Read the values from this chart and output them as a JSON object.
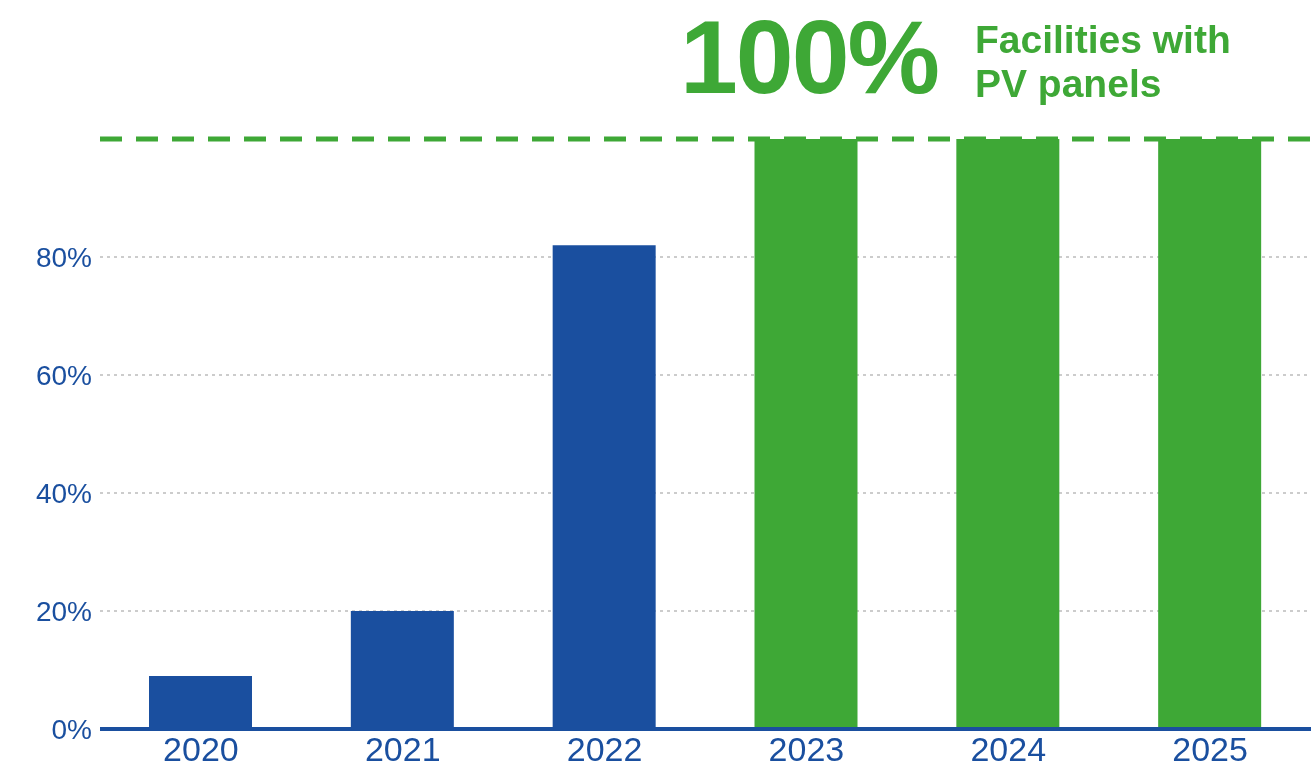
{
  "chart_data": {
    "type": "bar",
    "annotations": [
      "100%",
      "Facilities with PV panels"
    ],
    "categories": [
      "2020",
      "2021",
      "2022",
      "2023",
      "2024",
      "2025"
    ],
    "values": [
      9,
      20,
      82,
      100,
      100,
      100
    ],
    "colors": [
      "#1a4f9f",
      "#1a4f9f",
      "#1a4f9f",
      "#3ea836",
      "#3ea836",
      "#3ea836"
    ],
    "ylim": [
      0,
      100
    ],
    "yticks": [
      {
        "value": 0,
        "label": "0%"
      },
      {
        "value": 20,
        "label": "20%"
      },
      {
        "value": 40,
        "label": "40%"
      },
      {
        "value": 60,
        "label": "60%"
      },
      {
        "value": 80,
        "label": "80%"
      }
    ],
    "grid": "y",
    "ref_lines": [
      {
        "axis": "y",
        "value": 100,
        "label": null,
        "color": "#3ea836",
        "line_style": "dashed"
      }
    ]
  }
}
